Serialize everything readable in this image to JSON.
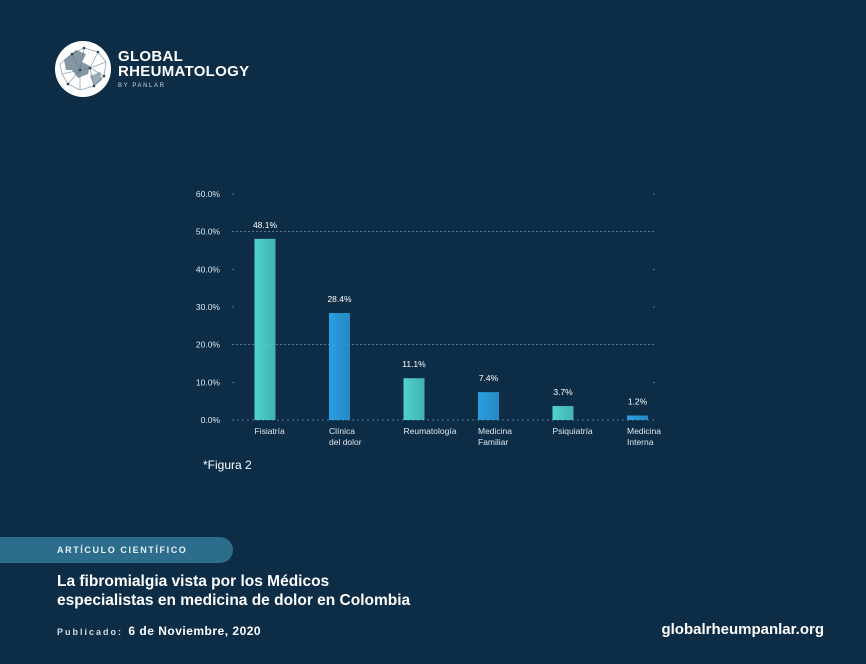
{
  "brand": {
    "line1": "GLOBAL",
    "line2": "RHEUMATOLOGY",
    "sub": "BY PANLAR"
  },
  "chart_data": {
    "type": "bar",
    "categories": [
      "Fisiatría",
      "Clínica del dolor",
      "Reumatología",
      "Medicina Familiar",
      "Psiquiatría",
      "Medicina Interna"
    ],
    "category_lines": [
      [
        "Fisiatría"
      ],
      [
        "Clínica",
        "del dolor"
      ],
      [
        "Reumatología"
      ],
      [
        "Medicina",
        "Familiar"
      ],
      [
        "Psiquiatría"
      ],
      [
        "Medicina",
        "Interna"
      ]
    ],
    "values": [
      48.1,
      28.4,
      11.1,
      7.4,
      3.7,
      1.2
    ],
    "value_labels": [
      "48.1%",
      "28.4%",
      "11.1%",
      "7.4%",
      "3.7%",
      "1.2%"
    ],
    "yticks": [
      0,
      10,
      20,
      30,
      40,
      50,
      60
    ],
    "ytick_labels": [
      "0.0%",
      "10.0%",
      "20.0%",
      "30.0%",
      "40.0%",
      "50.0%",
      "60.0%"
    ],
    "ylim": [
      0,
      60
    ],
    "bar_colors": [
      "#4fd3cf",
      "#2b9fe0",
      "#4fd3cf",
      "#2b9fe0",
      "#4fd3cf",
      "#2b9fe0"
    ],
    "title": "",
    "xlabel": "",
    "ylabel": ""
  },
  "figure_note": "*Figura 2",
  "article": {
    "tag": "ARTÍCULO CIENTÍFICO",
    "title_line1": "La fibromialgia vista por los Médicos",
    "title_line2": "especialistas en medicina de dolor en Colombia",
    "published_label": "Publicado:",
    "published_date": "6 de Noviembre, 2020"
  },
  "site": "globalrheumpanlar.org",
  "colors": {
    "background": "#0d2d47",
    "teal": "#4fd3cf",
    "blue": "#2b9fe0",
    "tag": "#2b6d8b"
  }
}
